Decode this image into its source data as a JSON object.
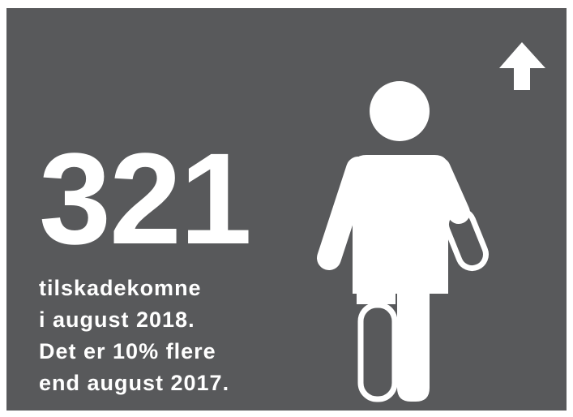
{
  "headline": {
    "number": "321"
  },
  "text_lines": [
    "tilskadekomne",
    "i august 2018.",
    "Det er 10% flere",
    "end august 2017."
  ]
}
